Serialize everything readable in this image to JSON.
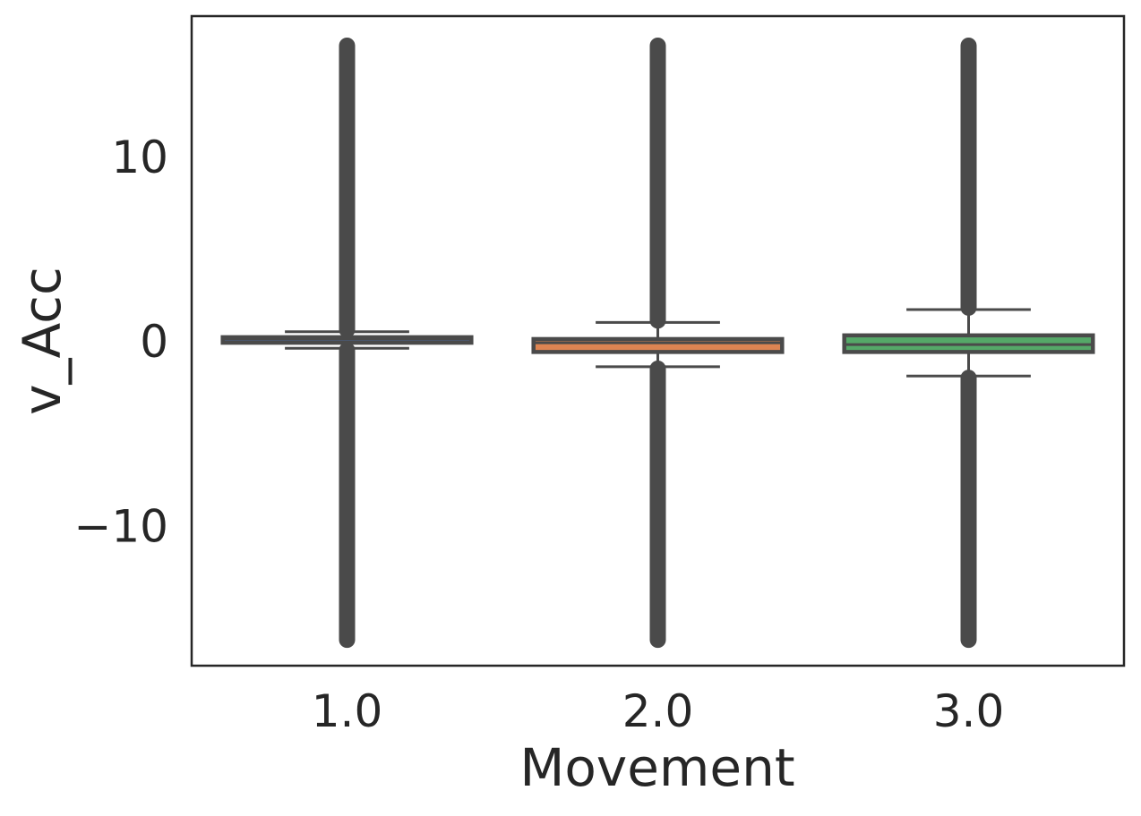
{
  "chart_data": {
    "type": "box",
    "xlabel": "Movement",
    "ylabel": "v_Acc",
    "categories": [
      "1.0",
      "2.0",
      "3.0"
    ],
    "yticks": [
      -10,
      0,
      10
    ],
    "ytick_labels": [
      "−10",
      "0",
      "10"
    ],
    "ylim": [
      -17.6,
      17.6
    ],
    "grid": false,
    "boxes": [
      {
        "category": "1.0",
        "color": "#4c72b0",
        "q1": -0.1,
        "median": 0.1,
        "q3": 0.2,
        "whisker_low": -0.4,
        "whisker_high": 0.5,
        "outlier_min": -16.2,
        "outlier_max": 16.0,
        "outliers_low_from": -0.5,
        "outliers_high_from": 0.6
      },
      {
        "category": "2.0",
        "color": "#dd8452",
        "q1": -0.6,
        "median": -0.1,
        "q3": 0.1,
        "whisker_low": -1.4,
        "whisker_high": 1.0,
        "outlier_min": -16.2,
        "outlier_max": 16.0,
        "outliers_low_from": -1.5,
        "outliers_high_from": 1.1
      },
      {
        "category": "3.0",
        "color": "#55a868",
        "q1": -0.6,
        "median": -0.2,
        "q3": 0.3,
        "whisker_low": -1.9,
        "whisker_high": 1.7,
        "outlier_min": -16.2,
        "outlier_max": 16.0,
        "outliers_low_from": -2.0,
        "outliers_high_from": 1.8
      }
    ]
  }
}
